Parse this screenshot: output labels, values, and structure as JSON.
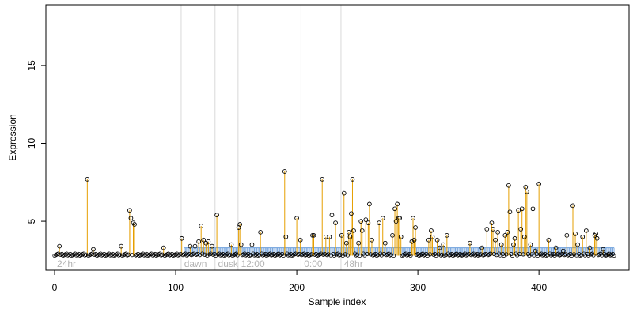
{
  "chart_data": {
    "type": "scatter",
    "title": "",
    "xlabel": "Sample index",
    "ylabel": "Expression",
    "xlim": [
      -7.2,
      474.4
    ],
    "ylim": [
      1.86,
      18.9
    ],
    "x_ticks": [
      0,
      100,
      200,
      300,
      400
    ],
    "y_ticks": [
      5,
      10,
      15
    ],
    "grid": false,
    "legend": "none",
    "colors": {
      "stem": "#e69f00",
      "band": "#6ea0dc",
      "point_stroke": "#000000",
      "divider": "#d9d9d9",
      "region_label": "#b3b3b3",
      "axis": "#000000"
    },
    "baseline": 2.8,
    "band": {
      "x_start": 107,
      "x_end": 462,
      "y_low": 2.8,
      "y_high": 3.3
    },
    "regions": [
      {
        "label": "24hr",
        "x_start": 0,
        "x_end": 104
      },
      {
        "label": "dawn",
        "x_start": 105,
        "x_end": 132
      },
      {
        "label": "dusk",
        "x_start": 133,
        "x_end": 151
      },
      {
        "label": "12:00",
        "x_start": 152,
        "x_end": 203
      },
      {
        "label": "0:00",
        "x_start": 204,
        "x_end": 236
      },
      {
        "label": "48hr",
        "x_start": 237,
        "x_end": 462
      }
    ],
    "dividers": [
      104.5,
      132.5,
      151.5,
      203.5,
      236.5
    ],
    "peaks": [
      {
        "x": 4,
        "y": 3.4
      },
      {
        "x": 27,
        "y": 7.7
      },
      {
        "x": 32,
        "y": 3.2
      },
      {
        "x": 62,
        "y": 5.7
      },
      {
        "x": 63,
        "y": 5.2
      },
      {
        "x": 65,
        "y": 4.9
      },
      {
        "x": 66,
        "y": 4.8
      },
      {
        "x": 55,
        "y": 3.4
      },
      {
        "x": 90,
        "y": 3.3
      },
      {
        "x": 105,
        "y": 3.9
      },
      {
        "x": 112,
        "y": 3.4
      },
      {
        "x": 116,
        "y": 3.4
      },
      {
        "x": 119,
        "y": 3.7
      },
      {
        "x": 121,
        "y": 4.7
      },
      {
        "x": 123,
        "y": 3.8
      },
      {
        "x": 125,
        "y": 3.6
      },
      {
        "x": 127,
        "y": 3.7
      },
      {
        "x": 130,
        "y": 3.4
      },
      {
        "x": 134,
        "y": 5.4
      },
      {
        "x": 146,
        "y": 3.5
      },
      {
        "x": 152,
        "y": 4.6
      },
      {
        "x": 153,
        "y": 4.8
      },
      {
        "x": 154,
        "y": 3.5
      },
      {
        "x": 163,
        "y": 3.5
      },
      {
        "x": 170,
        "y": 4.3
      },
      {
        "x": 190,
        "y": 8.2
      },
      {
        "x": 191,
        "y": 4.0
      },
      {
        "x": 200,
        "y": 5.2
      },
      {
        "x": 203,
        "y": 3.8
      },
      {
        "x": 213,
        "y": 4.1
      },
      {
        "x": 214,
        "y": 4.1
      },
      {
        "x": 221,
        "y": 7.7
      },
      {
        "x": 224,
        "y": 4.0
      },
      {
        "x": 227,
        "y": 4.0
      },
      {
        "x": 229,
        "y": 5.4
      },
      {
        "x": 232,
        "y": 4.9
      },
      {
        "x": 237,
        "y": 4.1
      },
      {
        "x": 239,
        "y": 6.8
      },
      {
        "x": 241,
        "y": 3.6
      },
      {
        "x": 243,
        "y": 4.3
      },
      {
        "x": 244,
        "y": 4.0
      },
      {
        "x": 245,
        "y": 5.5
      },
      {
        "x": 246,
        "y": 7.7
      },
      {
        "x": 247,
        "y": 4.4
      },
      {
        "x": 251,
        "y": 3.6
      },
      {
        "x": 253,
        "y": 5.0
      },
      {
        "x": 254,
        "y": 4.4
      },
      {
        "x": 257,
        "y": 5.1
      },
      {
        "x": 259,
        "y": 4.9
      },
      {
        "x": 260,
        "y": 6.1
      },
      {
        "x": 262,
        "y": 3.8
      },
      {
        "x": 268,
        "y": 4.9
      },
      {
        "x": 271,
        "y": 5.2
      },
      {
        "x": 273,
        "y": 3.6
      },
      {
        "x": 279,
        "y": 4.1
      },
      {
        "x": 281,
        "y": 5.8
      },
      {
        "x": 282,
        "y": 5.0
      },
      {
        "x": 283,
        "y": 6.1
      },
      {
        "x": 284,
        "y": 5.2
      },
      {
        "x": 285,
        "y": 5.2
      },
      {
        "x": 286,
        "y": 4.0
      },
      {
        "x": 295,
        "y": 3.7
      },
      {
        "x": 296,
        "y": 5.2
      },
      {
        "x": 297,
        "y": 3.8
      },
      {
        "x": 298,
        "y": 4.6
      },
      {
        "x": 309,
        "y": 3.8
      },
      {
        "x": 311,
        "y": 4.4
      },
      {
        "x": 312,
        "y": 4.0
      },
      {
        "x": 316,
        "y": 3.8
      },
      {
        "x": 318,
        "y": 3.3
      },
      {
        "x": 321,
        "y": 3.5
      },
      {
        "x": 324,
        "y": 4.1
      },
      {
        "x": 343,
        "y": 3.6
      },
      {
        "x": 353,
        "y": 3.3
      },
      {
        "x": 357,
        "y": 4.5
      },
      {
        "x": 361,
        "y": 4.9
      },
      {
        "x": 362,
        "y": 4.5
      },
      {
        "x": 364,
        "y": 3.8
      },
      {
        "x": 366,
        "y": 4.3
      },
      {
        "x": 369,
        "y": 3.5
      },
      {
        "x": 372,
        "y": 4.1
      },
      {
        "x": 374,
        "y": 4.3
      },
      {
        "x": 375,
        "y": 7.3
      },
      {
        "x": 376,
        "y": 5.6
      },
      {
        "x": 379,
        "y": 3.5
      },
      {
        "x": 380,
        "y": 3.9
      },
      {
        "x": 383,
        "y": 5.7
      },
      {
        "x": 385,
        "y": 4.5
      },
      {
        "x": 386,
        "y": 5.8
      },
      {
        "x": 388,
        "y": 4.0
      },
      {
        "x": 389,
        "y": 7.2
      },
      {
        "x": 390,
        "y": 6.9
      },
      {
        "x": 393,
        "y": 3.5
      },
      {
        "x": 395,
        "y": 5.8
      },
      {
        "x": 397,
        "y": 3.1
      },
      {
        "x": 400,
        "y": 7.4
      },
      {
        "x": 408,
        "y": 3.8
      },
      {
        "x": 414,
        "y": 3.3
      },
      {
        "x": 420,
        "y": 3.1
      },
      {
        "x": 423,
        "y": 4.1
      },
      {
        "x": 428,
        "y": 6.0
      },
      {
        "x": 430,
        "y": 4.2
      },
      {
        "x": 432,
        "y": 3.5
      },
      {
        "x": 436,
        "y": 4.0
      },
      {
        "x": 439,
        "y": 4.4
      },
      {
        "x": 442,
        "y": 3.3
      },
      {
        "x": 446,
        "y": 4.1
      },
      {
        "x": 447,
        "y": 4.2
      },
      {
        "x": 448,
        "y": 3.9
      },
      {
        "x": 453,
        "y": 3.2
      },
      {
        "x": 458,
        "y": 2.9
      }
    ]
  }
}
